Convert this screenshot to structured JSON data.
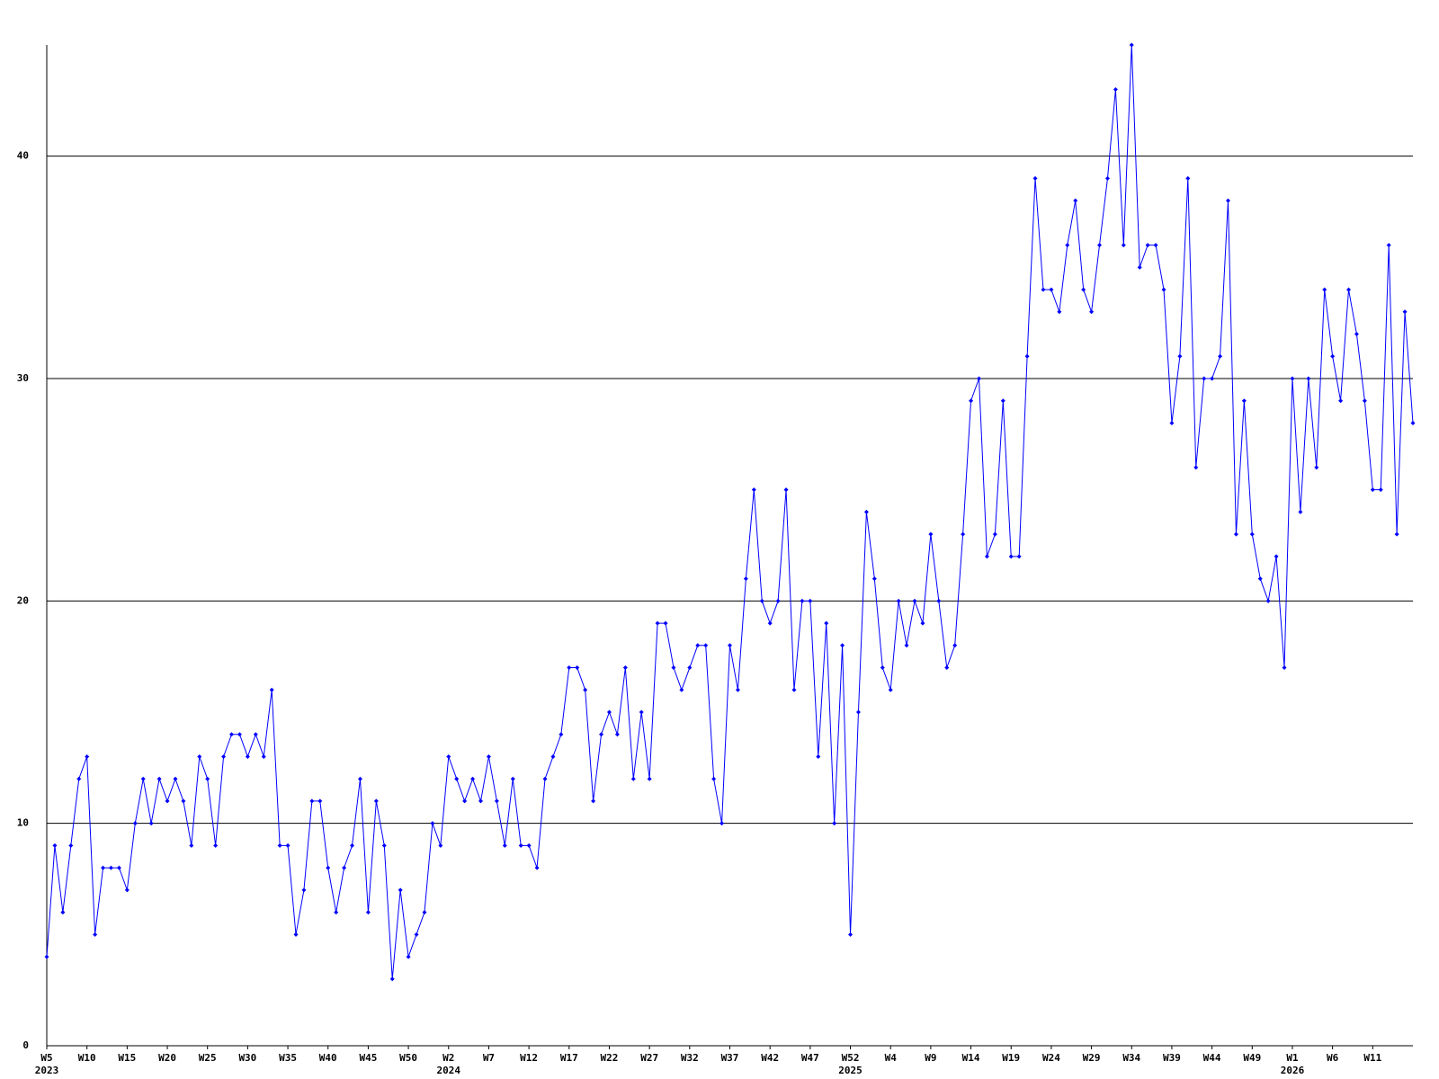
{
  "chart_data": {
    "type": "line",
    "categories": [
      "W5",
      null,
      null,
      null,
      null,
      "W10",
      null,
      null,
      null,
      null,
      "W15",
      null,
      null,
      null,
      null,
      "W20",
      null,
      null,
      null,
      null,
      "W25",
      null,
      null,
      null,
      null,
      "W30",
      null,
      null,
      null,
      null,
      "W35",
      null,
      null,
      null,
      null,
      "W40",
      null,
      null,
      null,
      null,
      "W45",
      null,
      null,
      null,
      null,
      "W50",
      null,
      null,
      null,
      null,
      "W2",
      null,
      null,
      null,
      null,
      "W7",
      null,
      null,
      null,
      null,
      "W12",
      null,
      null,
      null,
      null,
      "W17",
      null,
      null,
      null,
      null,
      "W22",
      null,
      null,
      null,
      null,
      "W27",
      null,
      null,
      null,
      null,
      "W32",
      null,
      null,
      null,
      null,
      "W37",
      null,
      null,
      null,
      null,
      "W42",
      null,
      null,
      null,
      null,
      "W47",
      null,
      null,
      null,
      null,
      "W52",
      null,
      null,
      null,
      null,
      "W4",
      null,
      null,
      null,
      null,
      "W9",
      null,
      null,
      null,
      null,
      "W14",
      null,
      null,
      null,
      null,
      "W19",
      null,
      null,
      null,
      null,
      "W24",
      null,
      null,
      null,
      null,
      "W29",
      null,
      null,
      null,
      null,
      "W34",
      null,
      null,
      null,
      null,
      "W39",
      null,
      null,
      null,
      null,
      "W44",
      null,
      null,
      null,
      null,
      "W49",
      null,
      null,
      null,
      null,
      "W1",
      null,
      null,
      null,
      null,
      "W6",
      null,
      null,
      null,
      null,
      "W11",
      null,
      null,
      null,
      null,
      null
    ],
    "category_groups": [
      "2023",
      null,
      null,
      null,
      null,
      null,
      null,
      null,
      null,
      null,
      null,
      null,
      null,
      null,
      null,
      null,
      null,
      null,
      null,
      null,
      null,
      null,
      null,
      null,
      null,
      null,
      null,
      null,
      null,
      null,
      null,
      null,
      null,
      null,
      null,
      null,
      null,
      null,
      null,
      null,
      null,
      null,
      null,
      null,
      null,
      null,
      null,
      null,
      null,
      null,
      "2024",
      null,
      null,
      null,
      null,
      null,
      null,
      null,
      null,
      null,
      null,
      null,
      null,
      null,
      null,
      null,
      null,
      null,
      null,
      null,
      null,
      null,
      null,
      null,
      null,
      null,
      null,
      null,
      null,
      null,
      null,
      null,
      null,
      null,
      null,
      null,
      null,
      null,
      null,
      null,
      null,
      null,
      null,
      null,
      null,
      null,
      null,
      null,
      null,
      null,
      "2025",
      null,
      null,
      null,
      null,
      null,
      null,
      null,
      null,
      null,
      null,
      null,
      null,
      null,
      null,
      null,
      null,
      null,
      null,
      null,
      null,
      null,
      null,
      null,
      null,
      null,
      null,
      null,
      null,
      null,
      null,
      null,
      null,
      null,
      null,
      null,
      null,
      null,
      null,
      null,
      null,
      null,
      null,
      null,
      null,
      null,
      null,
      null,
      null,
      null,
      null,
      null,
      null,
      null,
      null,
      "2026",
      null,
      null,
      null,
      null,
      null,
      null,
      null,
      null,
      null,
      null,
      null,
      null,
      null,
      null,
      null
    ],
    "values": [
      4,
      9,
      6,
      9,
      12,
      13,
      5,
      8,
      8,
      8,
      7,
      10,
      12,
      10,
      12,
      11,
      12,
      11,
      9,
      13,
      12,
      9,
      13,
      14,
      14,
      13,
      14,
      13,
      16,
      9,
      9,
      5,
      7,
      11,
      11,
      8,
      6,
      8,
      9,
      12,
      6,
      11,
      9,
      3,
      7,
      4,
      5,
      6,
      10,
      9,
      13,
      12,
      11,
      12,
      11,
      13,
      11,
      9,
      12,
      9,
      9,
      8,
      12,
      13,
      14,
      17,
      17,
      16,
      11,
      14,
      15,
      14,
      17,
      12,
      15,
      12,
      19,
      19,
      17,
      16,
      17,
      18,
      18,
      12,
      10,
      18,
      16,
      21,
      25,
      20,
      19,
      20,
      25,
      16,
      20,
      20,
      13,
      19,
      10,
      18,
      5,
      15,
      24,
      21,
      17,
      16,
      20,
      18,
      20,
      19,
      23,
      20,
      17,
      18,
      23,
      29,
      30,
      22,
      23,
      29,
      22,
      22,
      31,
      39,
      34,
      34,
      33,
      36,
      38,
      34,
      33,
      36,
      39,
      43,
      36,
      45,
      35,
      36,
      36,
      34,
      28,
      31,
      39,
      26,
      30,
      30,
      31,
      38,
      23,
      29,
      23,
      21,
      20,
      22,
      17,
      30,
      24,
      30,
      26,
      34,
      31,
      29,
      34,
      32,
      29,
      25,
      25,
      36,
      23,
      33,
      28
    ],
    "color": "#0000ff",
    "ylim": [
      0,
      45
    ],
    "yticks": [
      0,
      10,
      20,
      30,
      40
    ],
    "grid": true
  }
}
